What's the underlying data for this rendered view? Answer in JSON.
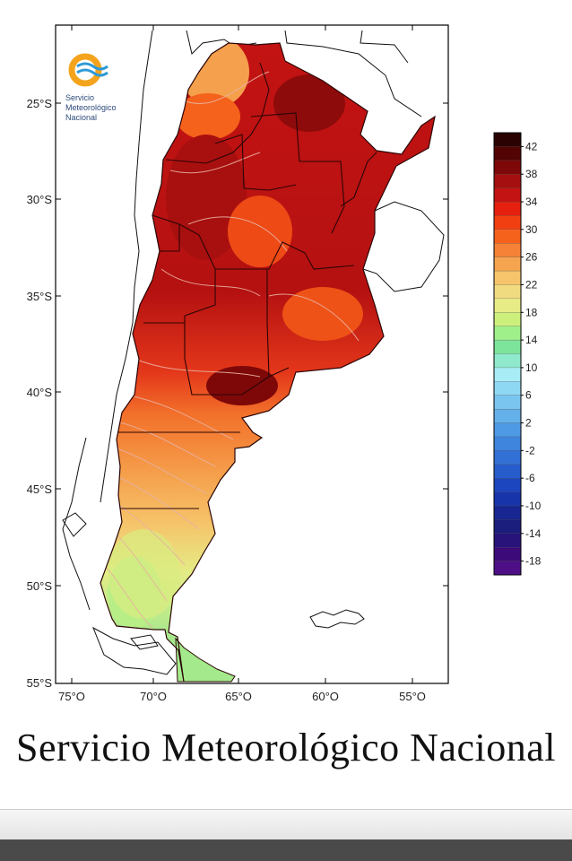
{
  "logo": {
    "name": "smn-logo-icon",
    "lines": [
      "Servicio",
      "Meteorológico",
      "Nacional"
    ],
    "colors": {
      "ring": "#f4a41c",
      "waves": "#2e9ad6"
    }
  },
  "map": {
    "lat_labels": [
      "25°S",
      "30°S",
      "35°S",
      "40°S",
      "45°S",
      "50°S",
      "55°S"
    ],
    "lon_labels": [
      "75°O",
      "70°O",
      "65°O",
      "60°O",
      "55°O"
    ]
  },
  "color_scale": {
    "labels": [
      "42",
      "38",
      "34",
      "30",
      "26",
      "22",
      "18",
      "14",
      "10",
      "6",
      "2",
      "-2",
      "-6",
      "-10",
      "-14",
      "-18"
    ],
    "colors": [
      "#2a0202",
      "#520404",
      "#7e0808",
      "#a50f0f",
      "#c41313",
      "#e5200f",
      "#f23f12",
      "#f5621c",
      "#f58236",
      "#f5a450",
      "#f6c46a",
      "#f1db80",
      "#e8ec86",
      "#cdf07c",
      "#9ff08a",
      "#7de49c",
      "#8fe9cc",
      "#a8ecf6",
      "#8fd8f3",
      "#79c5ef",
      "#63b0ea",
      "#4f9ae4",
      "#3f84dd",
      "#3370d6",
      "#275ccd",
      "#1c46c0",
      "#1834ab",
      "#172690",
      "#1b1d7c",
      "#28137a",
      "#3d0a7a",
      "#4e0f86"
    ]
  },
  "footer": {
    "title": "Servicio Meteorológico Nacional"
  }
}
